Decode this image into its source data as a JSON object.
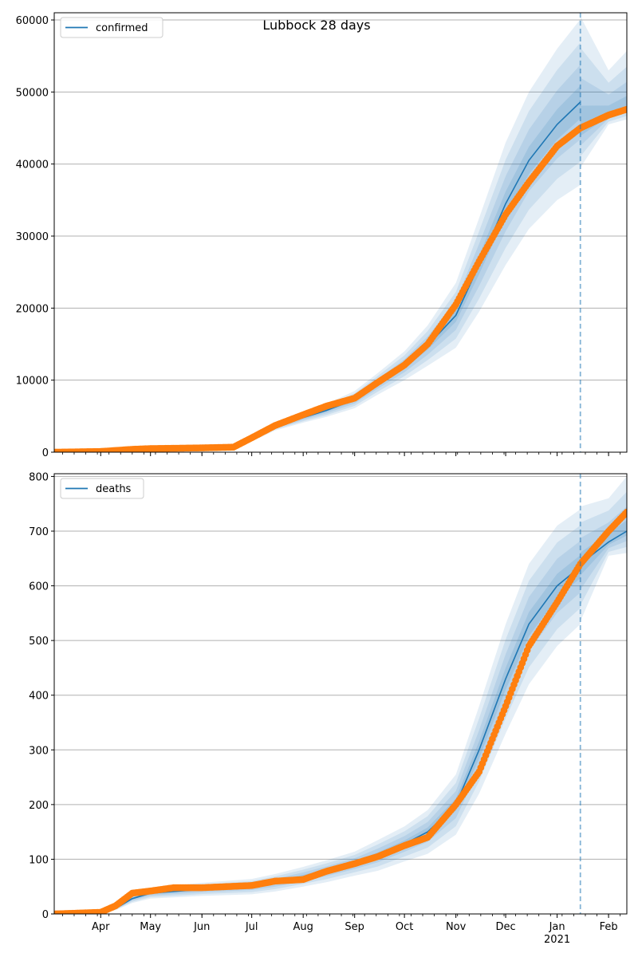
{
  "figure_title": "Lubbock 28 days",
  "chart_data": [
    {
      "type": "line",
      "legend": [
        "confirmed"
      ],
      "legend_position": "top-left",
      "grid": "horizontal",
      "x_range": [
        "2020-03-04",
        "2021-02-12"
      ],
      "forecast_start": "2021-01-15",
      "ylim": [
        0,
        61000
      ],
      "yticks": [
        0,
        10000,
        20000,
        30000,
        40000,
        50000,
        60000
      ],
      "yticklabels": [
        "0",
        "10000",
        "20000",
        "30000",
        "40000",
        "50000",
        "60000"
      ],
      "xticklabels": [],
      "model_series": {
        "name": "confirmed",
        "x": [
          "2020-03-04",
          "2020-04-01",
          "2020-04-20",
          "2020-05-01",
          "2020-06-01",
          "2020-06-20",
          "2020-07-01",
          "2020-07-15",
          "2020-08-01",
          "2020-08-15",
          "2020-09-01",
          "2020-09-15",
          "2020-10-01",
          "2020-10-15",
          "2020-11-01",
          "2020-11-15",
          "2020-12-01",
          "2020-12-15",
          "2021-01-01",
          "2021-01-15"
        ],
        "y": [
          0,
          100,
          400,
          500,
          600,
          800,
          1800,
          3500,
          4800,
          5800,
          7300,
          9500,
          12000,
          14800,
          19000,
          26000,
          34500,
          40500,
          45500,
          48600
        ],
        "band_halfwidth_outer": [
          0,
          20,
          60,
          80,
          100,
          150,
          300,
          500,
          700,
          900,
          1200,
          1500,
          2000,
          2800,
          4500,
          6500,
          8500,
          9500,
          10500,
          11500
        ]
      },
      "observed_series": {
        "x": [
          "2020-03-04",
          "2020-04-01",
          "2020-04-20",
          "2020-05-01",
          "2020-06-01",
          "2020-06-20",
          "2020-07-01",
          "2020-07-15",
          "2020-08-01",
          "2020-08-15",
          "2020-09-01",
          "2020-09-15",
          "2020-10-01",
          "2020-10-15",
          "2020-11-01",
          "2020-11-15",
          "2020-12-01",
          "2020-12-15",
          "2021-01-01",
          "2021-01-15",
          "2021-02-01",
          "2021-02-12"
        ],
        "y": [
          0,
          100,
          400,
          500,
          600,
          700,
          2000,
          3700,
          5200,
          6400,
          7500,
          9700,
          12100,
          15000,
          20500,
          26500,
          33000,
          37500,
          42500,
          45000,
          46800,
          47600
        ]
      },
      "forecast_band": {
        "x": [
          "2021-01-15",
          "2021-02-01",
          "2021-02-12"
        ],
        "center": [
          45000,
          46900,
          47900
        ],
        "upper_outer": [
          60500,
          53000,
          55700
        ],
        "lower_outer": [
          39500,
          45500,
          46200
        ]
      }
    },
    {
      "type": "line",
      "legend": [
        "deaths"
      ],
      "legend_position": "top-left",
      "grid": "horizontal",
      "x_range": [
        "2020-03-04",
        "2021-02-12"
      ],
      "forecast_start": "2021-01-15",
      "ylim": [
        0,
        805
      ],
      "yticks": [
        0,
        100,
        200,
        300,
        400,
        500,
        600,
        700,
        800
      ],
      "yticklabels": [
        "0",
        "100",
        "200",
        "300",
        "400",
        "500",
        "600",
        "700",
        "800"
      ],
      "xticks": [
        "2020-04-01",
        "2020-05-01",
        "2020-06-01",
        "2020-07-01",
        "2020-08-01",
        "2020-09-01",
        "2020-10-01",
        "2020-11-01",
        "2020-12-01",
        "2021-01-01",
        "2021-02-01"
      ],
      "xticklabels": [
        "Apr",
        "May",
        "Jun",
        "Jul",
        "Aug",
        "Sep",
        "Oct",
        "Nov",
        "Dec",
        "Jan",
        "Feb"
      ],
      "year_label": "2021",
      "model_series": {
        "name": "deaths",
        "x": [
          "2020-03-04",
          "2020-04-01",
          "2020-04-10",
          "2020-04-20",
          "2020-05-01",
          "2020-06-01",
          "2020-07-01",
          "2020-07-15",
          "2020-08-01",
          "2020-08-15",
          "2020-09-01",
          "2020-09-15",
          "2020-10-01",
          "2020-10-15",
          "2020-11-01",
          "2020-11-15",
          "2020-12-01",
          "2020-12-15",
          "2021-01-01",
          "2021-01-15"
        ],
        "y": [
          0,
          2,
          10,
          28,
          38,
          45,
          50,
          57,
          68,
          78,
          92,
          107,
          128,
          150,
          200,
          300,
          430,
          530,
          600,
          635
        ],
        "band_halfwidth_outer": [
          0,
          1,
          3,
          8,
          10,
          12,
          14,
          16,
          18,
          20,
          22,
          28,
          32,
          40,
          55,
          80,
          100,
          110,
          110,
          105
        ]
      },
      "observed_series": {
        "x": [
          "2020-03-04",
          "2020-04-01",
          "2020-04-10",
          "2020-04-20",
          "2020-05-01",
          "2020-05-15",
          "2020-06-01",
          "2020-07-01",
          "2020-07-15",
          "2020-08-01",
          "2020-08-15",
          "2020-09-01",
          "2020-09-15",
          "2020-10-01",
          "2020-10-15",
          "2020-11-01",
          "2020-11-15",
          "2020-12-01",
          "2020-12-15",
          "2021-01-01",
          "2021-01-15",
          "2021-02-01",
          "2021-02-12"
        ],
        "y": [
          0,
          3,
          15,
          38,
          42,
          48,
          48,
          52,
          60,
          63,
          78,
          92,
          105,
          125,
          140,
          200,
          260,
          380,
          490,
          570,
          640,
          700,
          735
        ]
      },
      "forecast_band": {
        "x": [
          "2021-01-15",
          "2021-02-01",
          "2021-02-12"
        ],
        "center": [
          640,
          680,
          700
        ],
        "upper_outer": [
          745,
          760,
          800
        ],
        "lower_outer": [
          535,
          655,
          660
        ]
      }
    }
  ]
}
